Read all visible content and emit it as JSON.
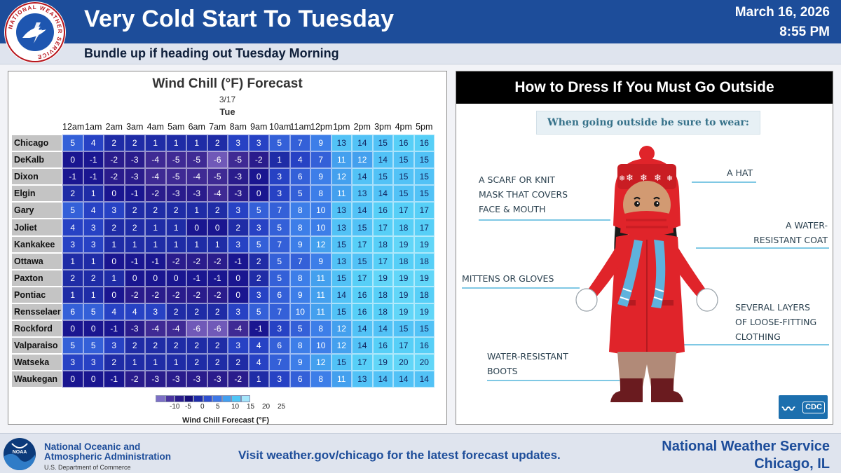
{
  "header": {
    "title": "Very Cold Start To Tuesday",
    "subtitle": "Bundle up if heading out Tuesday Morning",
    "date": "March 16, 2026",
    "time": "8:55 PM",
    "logo_text": "NATIONAL WEATHER SERVICE"
  },
  "wind_chill": {
    "title": "Wind Chill (°F) Forecast",
    "date": "3/17",
    "day": "Tue",
    "hours": [
      "12am",
      "1am",
      "2am",
      "3am",
      "4am",
      "5am",
      "6am",
      "7am",
      "8am",
      "9am",
      "10am",
      "11am",
      "12pm",
      "1pm",
      "2pm",
      "3pm",
      "4pm",
      "5pm"
    ],
    "rows": [
      {
        "city": "Chicago",
        "values": [
          5,
          4,
          2,
          2,
          1,
          1,
          1,
          2,
          3,
          3,
          5,
          7,
          9,
          13,
          14,
          15,
          16,
          16
        ]
      },
      {
        "city": "DeKalb",
        "values": [
          0,
          -1,
          -2,
          -3,
          -4,
          -5,
          -5,
          -6,
          -5,
          -2,
          1,
          4,
          7,
          11,
          12,
          14,
          15,
          15
        ]
      },
      {
        "city": "Dixon",
        "values": [
          -1,
          -1,
          -2,
          -3,
          -4,
          -5,
          -4,
          -5,
          -3,
          0,
          3,
          6,
          9,
          12,
          14,
          15,
          15,
          15
        ]
      },
      {
        "city": "Elgin",
        "values": [
          2,
          1,
          0,
          -1,
          -2,
          -3,
          -3,
          -4,
          -3,
          0,
          3,
          5,
          8,
          11,
          13,
          14,
          15,
          15
        ]
      },
      {
        "city": "Gary",
        "values": [
          5,
          4,
          3,
          2,
          2,
          2,
          1,
          2,
          3,
          5,
          7,
          8,
          10,
          13,
          14,
          16,
          17,
          17
        ]
      },
      {
        "city": "Joliet",
        "values": [
          4,
          3,
          2,
          2,
          1,
          1,
          0,
          0,
          2,
          3,
          5,
          8,
          10,
          13,
          15,
          17,
          18,
          17
        ]
      },
      {
        "city": "Kankakee",
        "values": [
          3,
          3,
          1,
          1,
          1,
          1,
          1,
          1,
          3,
          5,
          7,
          9,
          12,
          15,
          17,
          18,
          19,
          19
        ]
      },
      {
        "city": "Ottawa",
        "values": [
          1,
          1,
          0,
          -1,
          -1,
          -2,
          -2,
          -2,
          -1,
          2,
          5,
          7,
          9,
          13,
          15,
          17,
          18,
          18
        ]
      },
      {
        "city": "Paxton",
        "values": [
          2,
          2,
          1,
          0,
          0,
          0,
          -1,
          -1,
          0,
          2,
          5,
          8,
          11,
          15,
          17,
          19,
          19,
          19
        ]
      },
      {
        "city": "Pontiac",
        "values": [
          1,
          1,
          0,
          -2,
          -2,
          -2,
          -2,
          -2,
          0,
          3,
          6,
          9,
          11,
          14,
          16,
          18,
          19,
          18
        ]
      },
      {
        "city": "Rensselaer",
        "values": [
          6,
          5,
          4,
          4,
          3,
          2,
          2,
          2,
          3,
          5,
          7,
          10,
          11,
          15,
          16,
          18,
          19,
          19
        ]
      },
      {
        "city": "Rockford",
        "values": [
          0,
          0,
          -1,
          -3,
          -4,
          -4,
          -6,
          -6,
          -4,
          -1,
          3,
          5,
          8,
          12,
          14,
          14,
          15,
          15
        ]
      },
      {
        "city": "Valparaiso",
        "values": [
          5,
          5,
          3,
          2,
          2,
          2,
          2,
          2,
          3,
          4,
          6,
          8,
          10,
          12,
          14,
          16,
          17,
          16
        ]
      },
      {
        "city": "Watseka",
        "values": [
          3,
          3,
          2,
          1,
          1,
          1,
          2,
          2,
          2,
          4,
          7,
          9,
          12,
          15,
          17,
          19,
          20,
          20
        ]
      },
      {
        "city": "Waukegan",
        "values": [
          0,
          0,
          -1,
          -2,
          -3,
          -3,
          -3,
          -3,
          -2,
          1,
          3,
          6,
          8,
          11,
          13,
          14,
          14,
          14
        ]
      }
    ],
    "legend": {
      "ticks": [
        "-10",
        "-5",
        "0",
        "5",
        "10",
        "15",
        "20",
        "25"
      ],
      "label": "Wind Chill Forecast (°F)",
      "colors": [
        "#7d6fc6",
        "#4b35a0",
        "#2a1c8c",
        "#160d7a",
        "#1e2ca8",
        "#2e4fd0",
        "#3d78e6",
        "#42a0ef",
        "#4fc6f6",
        "#a4e6fb"
      ]
    }
  },
  "dress_panel": {
    "title": "How to Dress If You Must Go Outside",
    "banner": "When going outside be sure to wear:",
    "callouts": {
      "scarf": [
        "A SCARF OR KNIT",
        "MASK THAT COVERS",
        "FACE & MOUTH"
      ],
      "hat": [
        "A HAT"
      ],
      "coat": [
        "A WATER-",
        "RESISTANT COAT"
      ],
      "mittens": [
        "MITTENS OR GLOVES"
      ],
      "layers": [
        "SEVERAL LAYERS",
        "OF LOOSE-FITTING",
        "CLOTHING"
      ],
      "boots": [
        "WATER-RESISTANT",
        "BOOTS"
      ]
    },
    "cdc_logo": "CDC"
  },
  "footer": {
    "noaa_line1": "National Oceanic and",
    "noaa_line2": "Atmospheric Administration",
    "noaa_dept": "U.S. Department of Commerce",
    "visit": "Visit weather.gov/chicago for the latest forecast updates.",
    "nws_line1": "National Weather Service",
    "nws_line2": "Chicago, IL"
  }
}
